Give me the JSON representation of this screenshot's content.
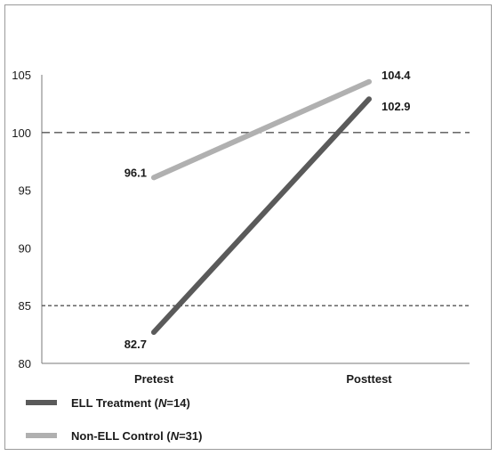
{
  "chart_data": {
    "type": "line",
    "title": "",
    "xlabel": "",
    "ylabel": "",
    "categories": [
      "Pretest",
      "Posttest"
    ],
    "ylim": [
      80,
      105
    ],
    "yticks": [
      80,
      85,
      90,
      95,
      100,
      105
    ],
    "reference_lines": [
      {
        "y": 100,
        "style": "dashed"
      },
      {
        "y": 85,
        "style": "dashed"
      }
    ],
    "series": [
      {
        "name_prefix": "ELL Treatment (",
        "name_n": "N",
        "name_suffix": "=14)",
        "values": [
          82.7,
          102.9
        ],
        "labels": [
          "82.7",
          "102.9"
        ],
        "color": "#5a5a5a"
      },
      {
        "name_prefix": "Non-ELL Control (",
        "name_n": "N",
        "name_suffix": "=31)",
        "values": [
          96.1,
          104.4
        ],
        "labels": [
          "96.1",
          "104.4"
        ],
        "color": "#b0b0b0"
      }
    ],
    "grid": false,
    "legend_placement": "bottom-left"
  }
}
